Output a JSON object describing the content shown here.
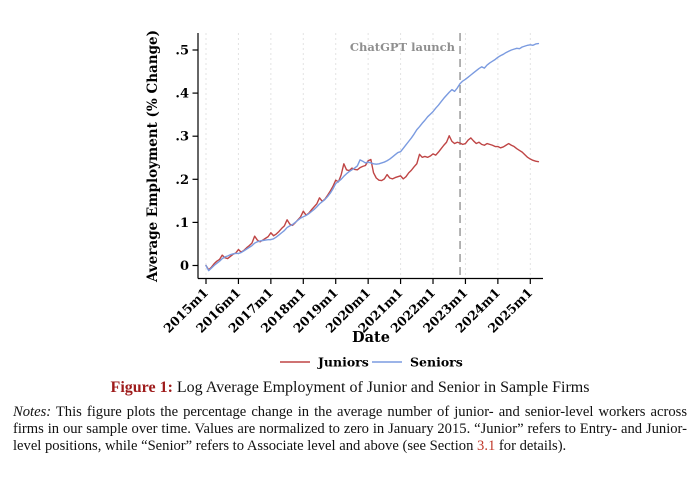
{
  "figure": {
    "caption_label": "Figure 1:",
    "caption_title": " Log Average Employment of Junior and Senior in Sample Firms"
  },
  "notes": {
    "label": "Notes:",
    "before_link": " This figure plots the percentage change in the average number of junior- and senior-level workers across firms in our sample over time. Values are normalized to zero in January 2015. “Junior” refers to Entry- and Junior-level positions, while “Senior” refers to Associate level and above (see Section ",
    "link": "3.1",
    "after_link": " for details)."
  },
  "colors": {
    "juniors": "#bf4545",
    "seniors": "#7b9be0",
    "grid": "#e3e3e3",
    "annotation_line": "#8a8a8a",
    "annotation_text": "#8f8f8f",
    "caption_label": "#9e1b1b",
    "section_link": "#c0392b",
    "axis": "#000000"
  },
  "chart_data": {
    "type": "line",
    "title": "",
    "xlabel": "Date",
    "ylabel": "Average Employment (% Change)",
    "x_start": "2015m1",
    "frequency": "monthly",
    "x_tick_labels": [
      "2015m1",
      "2016m1",
      "2017m1",
      "2018m1",
      "2019m1",
      "2020m1",
      "2021m1",
      "2022m1",
      "2023m1",
      "2024m1",
      "2025m1"
    ],
    "y_tick_labels": [
      "0",
      ".1",
      ".2",
      ".3",
      ".4",
      ".5"
    ],
    "ylim": [
      -0.03,
      0.54
    ],
    "grid": "vertical-dashed",
    "legend_position": "bottom",
    "annotation": {
      "label": "ChatGPT launch",
      "x": "2022m11"
    },
    "series": [
      {
        "name": "Juniors",
        "color": "#bf4545",
        "values": [
          0,
          -0.01,
          -0.004,
          0.004,
          0.01,
          0.014,
          0.024,
          0.018,
          0.016,
          0.021,
          0.026,
          0.029,
          0.037,
          0.031,
          0.035,
          0.041,
          0.046,
          0.052,
          0.068,
          0.059,
          0.055,
          0.059,
          0.063,
          0.067,
          0.076,
          0.069,
          0.073,
          0.079,
          0.086,
          0.092,
          0.106,
          0.096,
          0.093,
          0.099,
          0.106,
          0.113,
          0.126,
          0.117,
          0.121,
          0.129,
          0.136,
          0.143,
          0.157,
          0.149,
          0.154,
          0.163,
          0.173,
          0.184,
          0.198,
          0.194,
          0.21,
          0.236,
          0.222,
          0.22,
          0.226,
          0.223,
          0.222,
          0.227,
          0.23,
          0.232,
          0.243,
          0.246,
          0.215,
          0.203,
          0.198,
          0.197,
          0.201,
          0.211,
          0.203,
          0.201,
          0.204,
          0.206,
          0.208,
          0.201,
          0.206,
          0.215,
          0.221,
          0.229,
          0.236,
          0.258,
          0.251,
          0.253,
          0.251,
          0.254,
          0.259,
          0.256,
          0.263,
          0.271,
          0.279,
          0.286,
          0.301,
          0.288,
          0.283,
          0.286,
          0.284,
          0.281,
          0.283,
          0.291,
          0.296,
          0.289,
          0.283,
          0.286,
          0.281,
          0.279,
          0.283,
          0.281,
          0.279,
          0.276,
          0.276,
          0.273,
          0.275,
          0.279,
          0.283,
          0.279,
          0.276,
          0.271,
          0.267,
          0.263,
          0.257,
          0.251,
          0.247,
          0.244,
          0.242,
          0.241
        ]
      },
      {
        "name": "Seniors",
        "color": "#7b9be0",
        "values": [
          0,
          -0.012,
          -0.006,
          0,
          0.005,
          0.01,
          0.016,
          0.02,
          0.022,
          0.025,
          0.027,
          0.028,
          0.028,
          0.03,
          0.034,
          0.038,
          0.042,
          0.046,
          0.052,
          0.055,
          0.057,
          0.058,
          0.059,
          0.06,
          0.06,
          0.062,
          0.066,
          0.071,
          0.076,
          0.081,
          0.088,
          0.092,
          0.095,
          0.1,
          0.105,
          0.11,
          0.113,
          0.116,
          0.12,
          0.125,
          0.13,
          0.136,
          0.143,
          0.148,
          0.153,
          0.16,
          0.168,
          0.178,
          0.19,
          0.195,
          0.2,
          0.207,
          0.213,
          0.218,
          0.222,
          0.226,
          0.231,
          0.245,
          0.242,
          0.238,
          0.24,
          0.238,
          0.236,
          0.235,
          0.236,
          0.238,
          0.24,
          0.243,
          0.247,
          0.252,
          0.257,
          0.262,
          0.264,
          0.272,
          0.28,
          0.288,
          0.296,
          0.305,
          0.315,
          0.322,
          0.33,
          0.337,
          0.345,
          0.351,
          0.357,
          0.365,
          0.372,
          0.38,
          0.388,
          0.395,
          0.402,
          0.408,
          0.404,
          0.412,
          0.422,
          0.428,
          0.432,
          0.437,
          0.442,
          0.447,
          0.452,
          0.457,
          0.461,
          0.458,
          0.465,
          0.47,
          0.474,
          0.478,
          0.483,
          0.487,
          0.49,
          0.494,
          0.497,
          0.5,
          0.502,
          0.504,
          0.503,
          0.507,
          0.509,
          0.511,
          0.512,
          0.511,
          0.514,
          0.515
        ]
      }
    ]
  }
}
